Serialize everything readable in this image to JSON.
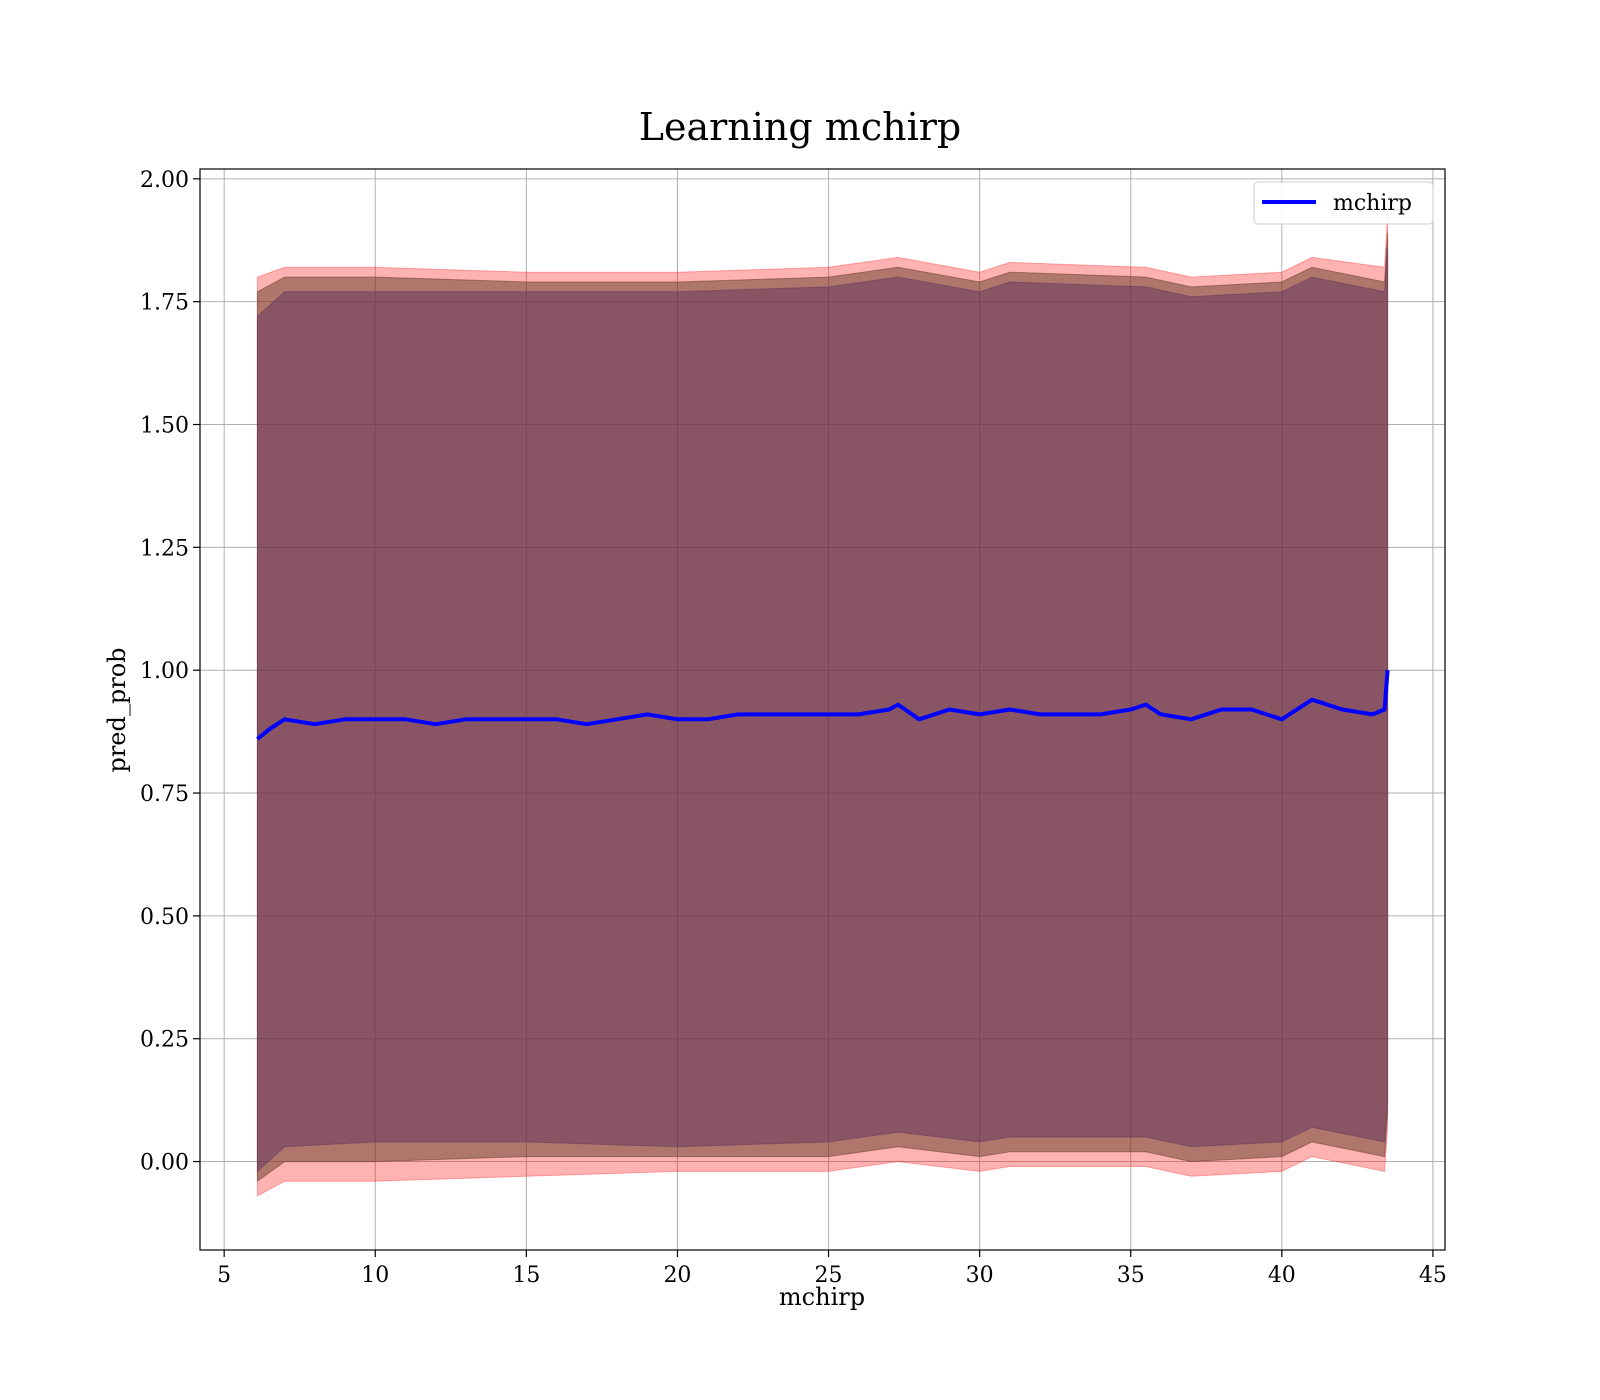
{
  "chart_data": {
    "type": "line",
    "title": "Learning mchirp",
    "xlabel": "mchirp",
    "ylabel": "pred_prob",
    "xlim": [
      4.2,
      45.4
    ],
    "ylim": [
      -0.18,
      2.02
    ],
    "xticks": [
      5,
      10,
      15,
      20,
      25,
      30,
      35,
      40,
      45
    ],
    "yticks": [
      0.0,
      0.25,
      0.5,
      0.75,
      1.0,
      1.25,
      1.5,
      1.75,
      2.0
    ],
    "xtick_labels": [
      "5",
      "10",
      "15",
      "20",
      "25",
      "30",
      "35",
      "40",
      "45"
    ],
    "ytick_labels": [
      "0.00",
      "0.25",
      "0.50",
      "0.75",
      "1.00",
      "1.25",
      "1.50",
      "1.75",
      "2.00"
    ],
    "grid": true,
    "legend_position": "top-right",
    "series": [
      {
        "name": "mchirp",
        "color": "#0000ff",
        "x": [
          6.1,
          6.5,
          7,
          8,
          9,
          10,
          11,
          12,
          13,
          14,
          15,
          16,
          17,
          18,
          19,
          20,
          21,
          22,
          23,
          24,
          25,
          26,
          27,
          27.3,
          28,
          29,
          30,
          31,
          32,
          33,
          34,
          35,
          35.5,
          36,
          37,
          38,
          39,
          40,
          41,
          42,
          43,
          43.4,
          43.5
        ],
        "values": [
          0.86,
          0.88,
          0.9,
          0.89,
          0.9,
          0.9,
          0.9,
          0.89,
          0.9,
          0.9,
          0.9,
          0.9,
          0.89,
          0.9,
          0.91,
          0.9,
          0.9,
          0.91,
          0.91,
          0.91,
          0.91,
          0.91,
          0.92,
          0.93,
          0.9,
          0.92,
          0.91,
          0.92,
          0.91,
          0.91,
          0.91,
          0.92,
          0.93,
          0.91,
          0.9,
          0.92,
          0.92,
          0.9,
          0.94,
          0.92,
          0.91,
          0.92,
          1.0
        ]
      }
    ],
    "bands": [
      {
        "color": "#ff0000",
        "opacity": 0.3,
        "x": [
          6.1,
          7,
          10,
          15,
          20,
          25,
          27.3,
          30,
          31,
          35.5,
          37,
          40,
          41,
          43.4,
          43.5
        ],
        "upper": [
          1.8,
          1.82,
          1.82,
          1.81,
          1.81,
          1.82,
          1.84,
          1.81,
          1.83,
          1.82,
          1.8,
          1.81,
          1.84,
          1.82,
          1.93
        ],
        "lower": [
          -0.07,
          -0.04,
          -0.04,
          -0.03,
          -0.02,
          -0.02,
          0.0,
          -0.02,
          -0.01,
          -0.01,
          -0.03,
          -0.02,
          0.01,
          -0.02,
          0.07
        ]
      },
      {
        "color": "#5f3a24",
        "opacity": 0.5,
        "x": [
          6.1,
          7,
          10,
          15,
          20,
          25,
          27.3,
          30,
          31,
          35.5,
          37,
          40,
          41,
          43.4,
          43.5
        ],
        "upper": [
          1.77,
          1.8,
          1.8,
          1.79,
          1.79,
          1.8,
          1.82,
          1.79,
          1.81,
          1.8,
          1.78,
          1.79,
          1.82,
          1.79,
          1.89
        ],
        "lower": [
          -0.04,
          0.0,
          0.0,
          0.01,
          0.01,
          0.01,
          0.03,
          0.01,
          0.02,
          0.02,
          0.0,
          0.01,
          0.04,
          0.01,
          0.1
        ]
      },
      {
        "color": "#5a2e5f",
        "opacity": 0.45,
        "x": [
          6.1,
          7,
          10,
          15,
          20,
          25,
          27.3,
          30,
          31,
          35.5,
          37,
          40,
          41,
          43.4,
          43.5
        ],
        "upper": [
          1.72,
          1.77,
          1.77,
          1.77,
          1.77,
          1.78,
          1.8,
          1.77,
          1.79,
          1.78,
          1.76,
          1.77,
          1.8,
          1.77,
          1.86
        ],
        "lower": [
          -0.02,
          0.03,
          0.04,
          0.04,
          0.03,
          0.04,
          0.06,
          0.04,
          0.05,
          0.05,
          0.03,
          0.04,
          0.07,
          0.04,
          0.12
        ]
      }
    ]
  }
}
